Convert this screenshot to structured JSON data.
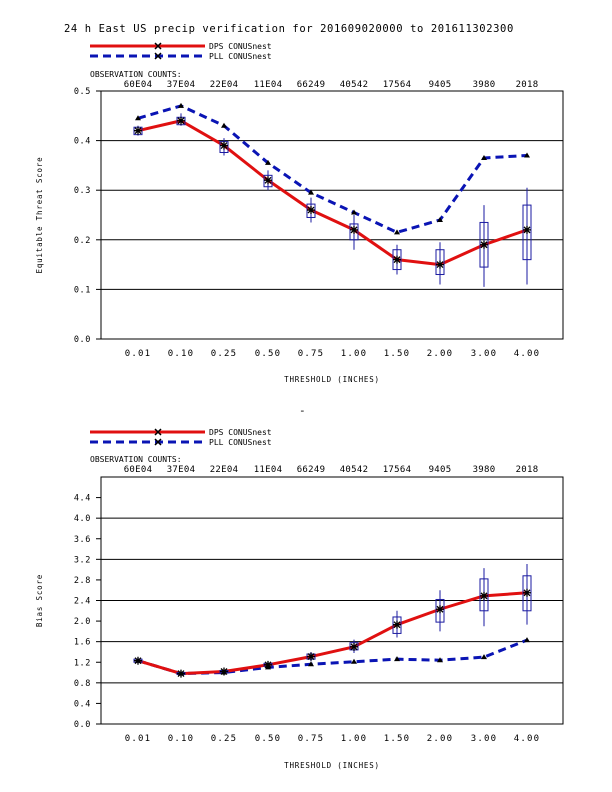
{
  "title": "24 h East US precip verification for 201609020000 to 201611302300",
  "colors": {
    "dps": "#e01010",
    "pll": "#0a14b4",
    "box": "#1a1aa0",
    "axis": "#000000"
  },
  "chart_data": [
    {
      "type": "line",
      "ylabel": "Equitable Threat Score",
      "xlabel": "THRESHOLD (INCHES)",
      "categories": [
        "0.01",
        "0.10",
        "0.25",
        "0.50",
        "0.75",
        "1.00",
        "1.50",
        "2.00",
        "3.00",
        "4.00"
      ],
      "ylim": [
        0.0,
        0.5
      ],
      "yticks": [
        "0.0",
        "0.1",
        "0.2",
        "0.3",
        "0.4",
        "0.5"
      ],
      "ytick_values": [
        0.0,
        0.1,
        0.2,
        0.3,
        0.4,
        0.5
      ],
      "obs_label": "OBSERVATION COUNTS:",
      "obs_counts": [
        "60E04",
        "37E04",
        "22E04",
        "11E04",
        "66249",
        "40542",
        "17564",
        "9405",
        "3980",
        "2018"
      ],
      "grid": true,
      "legend_position": "top-left",
      "series": [
        {
          "name": "DPS CONUSnest",
          "color": "#e01010",
          "style": "solid",
          "values": [
            0.42,
            0.44,
            0.39,
            0.32,
            0.26,
            0.22,
            0.16,
            0.15,
            0.19,
            0.22
          ],
          "boxes": [
            {
              "low": 0.41,
              "q1": 0.412,
              "q3": 0.427,
              "high": 0.43
            },
            {
              "low": 0.43,
              "q1": 0.432,
              "q3": 0.447,
              "high": 0.455
            },
            {
              "low": 0.37,
              "q1": 0.376,
              "q3": 0.398,
              "high": 0.405
            },
            {
              "low": 0.3,
              "q1": 0.307,
              "q3": 0.33,
              "high": 0.34
            },
            {
              "low": 0.235,
              "q1": 0.245,
              "q3": 0.272,
              "high": 0.285
            },
            {
              "low": 0.18,
              "q1": 0.2,
              "q3": 0.232,
              "high": 0.25
            },
            {
              "low": 0.13,
              "q1": 0.14,
              "q3": 0.18,
              "high": 0.19
            },
            {
              "low": 0.11,
              "q1": 0.13,
              "q3": 0.18,
              "high": 0.195
            },
            {
              "low": 0.105,
              "q1": 0.145,
              "q3": 0.235,
              "high": 0.27
            },
            {
              "low": 0.11,
              "q1": 0.16,
              "q3": 0.27,
              "high": 0.305
            }
          ]
        },
        {
          "name": "PLL CONUSnest",
          "color": "#0a14b4",
          "style": "dashed",
          "values": [
            0.445,
            0.47,
            0.43,
            0.355,
            0.295,
            0.255,
            0.215,
            0.24,
            0.365,
            0.37
          ]
        }
      ]
    },
    {
      "type": "line",
      "ylabel": "Bias Score",
      "xlabel": "THRESHOLD (INCHES)",
      "categories": [
        "0.01",
        "0.10",
        "0.25",
        "0.50",
        "0.75",
        "1.00",
        "1.50",
        "2.00",
        "3.00",
        "4.00"
      ],
      "ylim": [
        0.0,
        4.8
      ],
      "yticks": [
        "0.0",
        "0.4",
        "0.8",
        "1.2",
        "1.6",
        "2.0",
        "2.4",
        "2.8",
        "3.2",
        "3.6",
        "4.0",
        "4.4"
      ],
      "ytick_values": [
        0.0,
        0.4,
        0.8,
        1.2,
        1.6,
        2.0,
        2.4,
        2.8,
        3.2,
        3.6,
        4.0,
        4.4
      ],
      "grid_values": [
        0.8,
        1.6,
        2.4,
        3.2,
        4.0
      ],
      "obs_label": "OBSERVATION COUNTS:",
      "obs_counts": [
        "60E04",
        "37E04",
        "22E04",
        "11E04",
        "66249",
        "40542",
        "17564",
        "9405",
        "3980",
        "2018"
      ],
      "grid": true,
      "legend_position": "top-left",
      "series": [
        {
          "name": "DPS CONUSnest",
          "color": "#e01010",
          "style": "solid",
          "values": [
            1.23,
            0.98,
            1.02,
            1.15,
            1.31,
            1.5,
            1.93,
            2.23,
            2.49,
            2.55
          ],
          "boxes": [
            {
              "low": 1.19,
              "q1": 1.2,
              "q3": 1.26,
              "high": 1.28
            },
            {
              "low": 0.96,
              "q1": 0.965,
              "q3": 1.0,
              "high": 1.01
            },
            {
              "low": 0.99,
              "q1": 1.0,
              "q3": 1.04,
              "high": 1.06
            },
            {
              "low": 1.1,
              "q1": 1.12,
              "q3": 1.18,
              "high": 1.21
            },
            {
              "low": 1.22,
              "q1": 1.26,
              "q3": 1.36,
              "high": 1.4
            },
            {
              "low": 1.38,
              "q1": 1.44,
              "q3": 1.58,
              "high": 1.64
            },
            {
              "low": 1.68,
              "q1": 1.76,
              "q3": 2.08,
              "high": 2.2
            },
            {
              "low": 1.8,
              "q1": 1.98,
              "q3": 2.42,
              "high": 2.6
            },
            {
              "low": 1.9,
              "q1": 2.2,
              "q3": 2.82,
              "high": 3.03
            },
            {
              "low": 1.93,
              "q1": 2.2,
              "q3": 2.88,
              "high": 3.11
            }
          ]
        },
        {
          "name": "PLL CONUSnest",
          "color": "#0a14b4",
          "style": "dashed",
          "values": [
            1.23,
            0.98,
            1.0,
            1.1,
            1.16,
            1.21,
            1.26,
            1.24,
            1.3,
            1.63
          ]
        }
      ]
    }
  ],
  "mid_mark": "-"
}
